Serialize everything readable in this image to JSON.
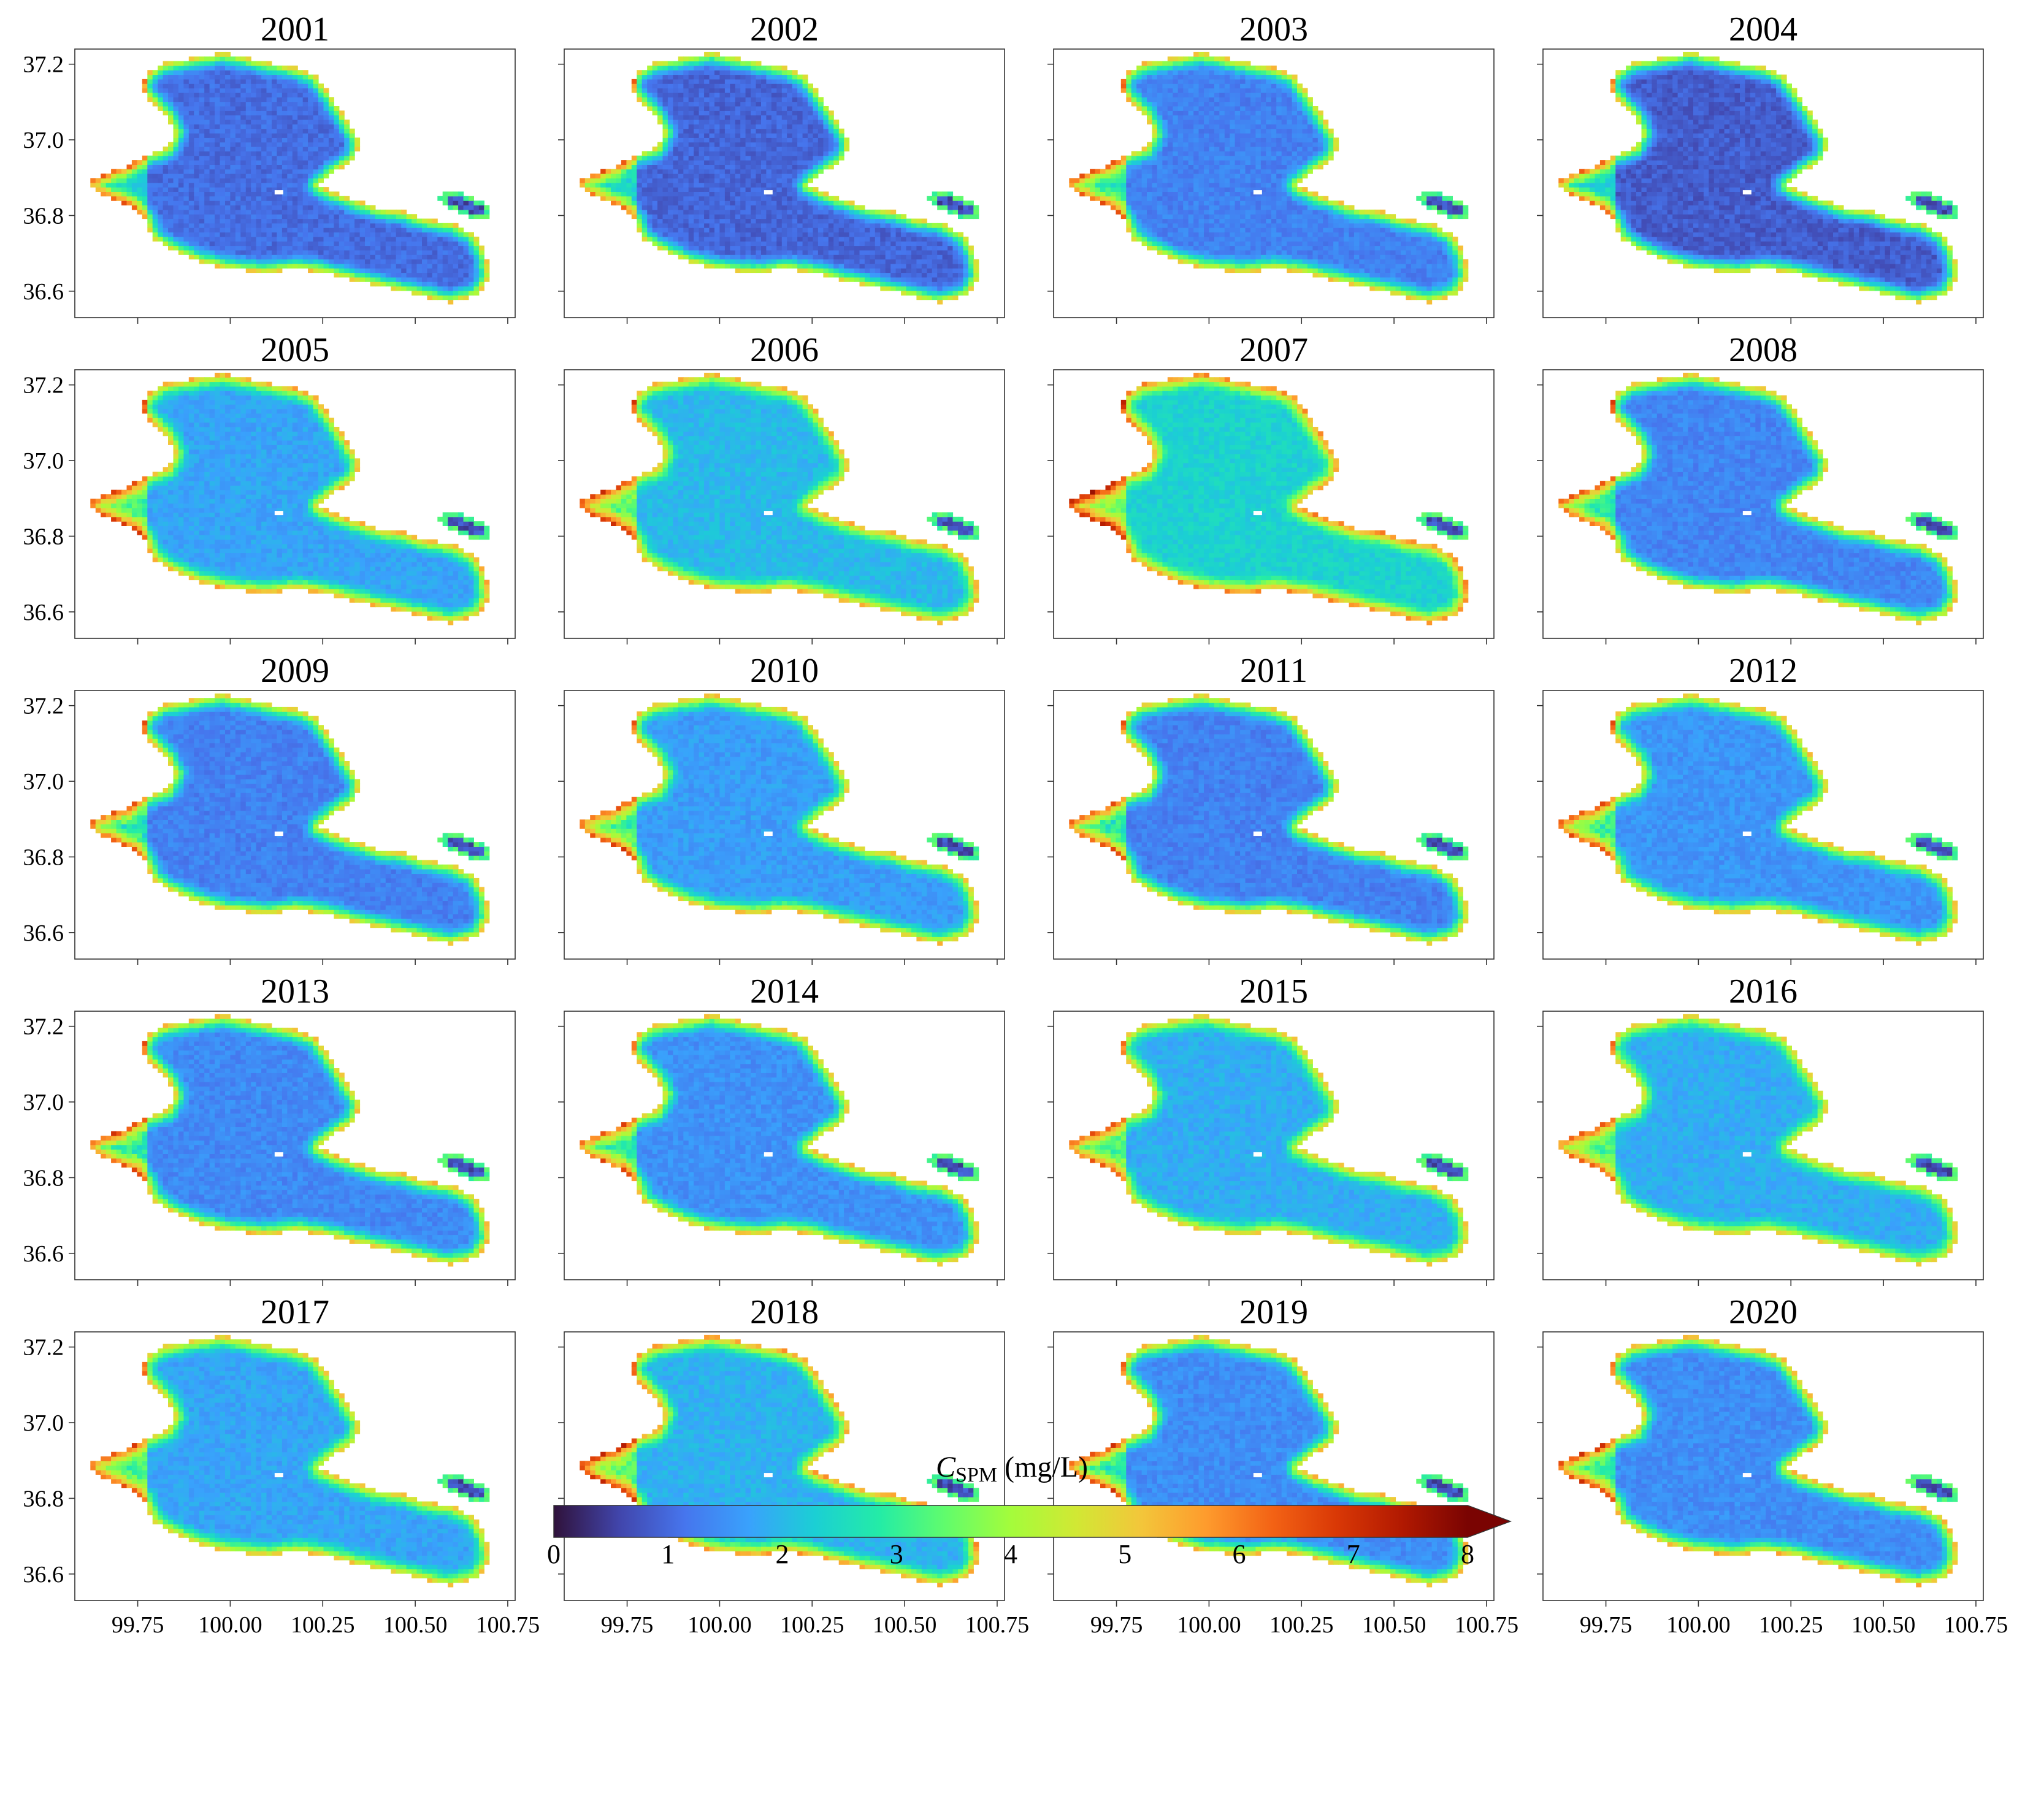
{
  "chart_data": {
    "type": "heatmap",
    "variable": "CSPM",
    "colorbar": {
      "label_symbol": "C",
      "label_subscript": "SPM",
      "label_unit": "(mg/L)",
      "ticks": [
        "0",
        "1",
        "2",
        "3",
        "4",
        "5",
        "6",
        "7",
        "8"
      ],
      "vmin": 0,
      "vmax": 8,
      "extend": "max",
      "colormap": "turbo",
      "colors": [
        "#30123b",
        "#4145ab",
        "#4675ed",
        "#39a2fc",
        "#1bcfd4",
        "#24eca6",
        "#61fc6c",
        "#a4fc3b",
        "#d1e834",
        "#f3c63a",
        "#fe9b2d",
        "#f36315",
        "#d93806",
        "#b11901",
        "#7a0402"
      ]
    },
    "axes": {
      "xlim": [
        99.58,
        100.77
      ],
      "ylim": [
        36.53,
        37.24
      ],
      "x_ticks": [
        "99.75",
        "100.00",
        "100.25",
        "100.50",
        "100.75"
      ],
      "y_ticks": [
        "36.6",
        "36.8",
        "37.0",
        "37.2"
      ],
      "x_tick_values": [
        99.75,
        100.0,
        100.25,
        100.5,
        100.75
      ],
      "y_tick_values": [
        36.6,
        36.8,
        37.0,
        37.2
      ]
    },
    "panels": [
      {
        "title": "2001",
        "base": 1.05,
        "shore": 5.2
      },
      {
        "title": "2002",
        "base": 0.95,
        "shore": 5.0
      },
      {
        "title": "2003",
        "base": 1.3,
        "shore": 5.3
      },
      {
        "title": "2004",
        "base": 0.85,
        "shore": 4.9
      },
      {
        "title": "2005",
        "base": 1.75,
        "shore": 5.6
      },
      {
        "title": "2006",
        "base": 2.0,
        "shore": 5.5
      },
      {
        "title": "2007",
        "base": 2.35,
        "shore": 6.0
      },
      {
        "title": "2008",
        "base": 1.35,
        "shore": 5.3
      },
      {
        "title": "2009",
        "base": 1.3,
        "shore": 5.2
      },
      {
        "title": "2010",
        "base": 1.65,
        "shore": 5.3
      },
      {
        "title": "2011",
        "base": 1.3,
        "shore": 5.2
      },
      {
        "title": "2012",
        "base": 1.55,
        "shore": 5.3
      },
      {
        "title": "2013",
        "base": 1.4,
        "shore": 5.4
      },
      {
        "title": "2014",
        "base": 1.5,
        "shore": 5.3
      },
      {
        "title": "2015",
        "base": 1.85,
        "shore": 5.2
      },
      {
        "title": "2016",
        "base": 1.85,
        "shore": 5.1
      },
      {
        "title": "2017",
        "base": 1.75,
        "shore": 5.2
      },
      {
        "title": "2018",
        "base": 1.9,
        "shore": 5.8
      },
      {
        "title": "2019",
        "base": 1.45,
        "shore": 5.4
      },
      {
        "title": "2020",
        "base": 1.45,
        "shore": 5.5
      }
    ]
  }
}
